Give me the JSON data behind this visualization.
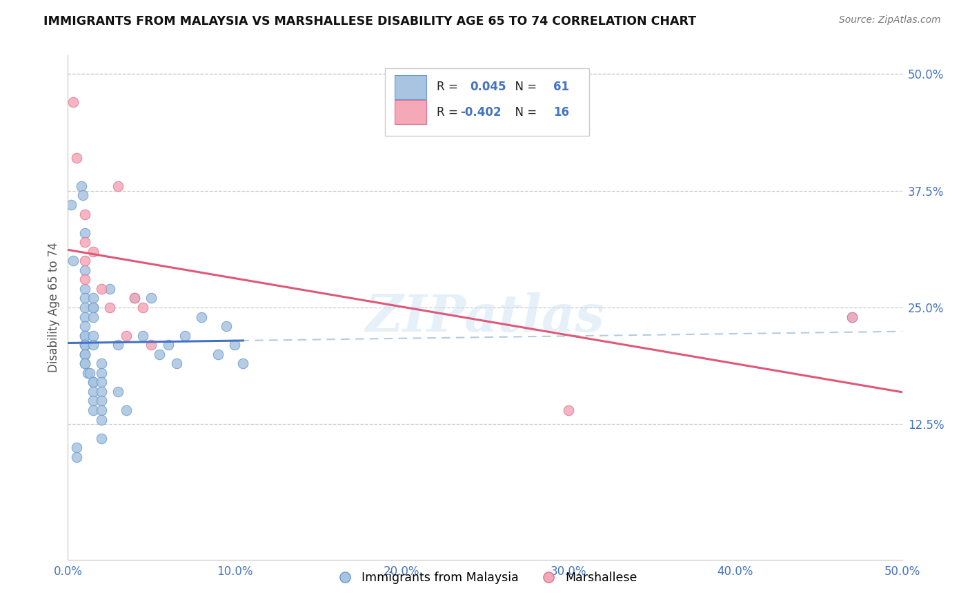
{
  "title": "IMMIGRANTS FROM MALAYSIA VS MARSHALLESE DISABILITY AGE 65 TO 74 CORRELATION CHART",
  "source": "Source: ZipAtlas.com",
  "ylabel": "Disability Age 65 to 74",
  "xticklabels": [
    "0.0%",
    "10.0%",
    "20.0%",
    "30.0%",
    "40.0%",
    "50.0%"
  ],
  "yticklabels": [
    "12.5%",
    "25.0%",
    "37.5%",
    "50.0%"
  ],
  "xticks": [
    0.0,
    10.0,
    20.0,
    30.0,
    40.0,
    50.0
  ],
  "yticks": [
    12.5,
    25.0,
    37.5,
    50.0
  ],
  "xlim": [
    0.0,
    50.0
  ],
  "ylim": [
    -2.0,
    52.0
  ],
  "legend_labels": [
    "Immigrants from Malaysia",
    "Marshallese"
  ],
  "blue_R": "0.045",
  "blue_N": "61",
  "pink_R": "-0.402",
  "pink_N": "16",
  "blue_color": "#a8c4e0",
  "pink_color": "#f4a8b8",
  "blue_edge_color": "#6699cc",
  "pink_edge_color": "#e07090",
  "blue_line_color": "#4472c4",
  "pink_line_color": "#e05878",
  "blue_dash_color": "#b0cce0",
  "watermark": "ZIPatlas",
  "blue_x": [
    0.2,
    0.3,
    0.5,
    0.5,
    0.8,
    0.9,
    1.0,
    1.0,
    1.0,
    1.0,
    1.0,
    1.0,
    1.0,
    1.0,
    1.0,
    1.0,
    1.0,
    1.0,
    1.0,
    1.0,
    1.0,
    1.0,
    1.0,
    1.2,
    1.3,
    1.5,
    1.5,
    1.5,
    1.5,
    1.5,
    1.5,
    1.5,
    1.5,
    1.5,
    1.5,
    1.5,
    2.0,
    2.0,
    2.0,
    2.0,
    2.0,
    2.0,
    2.0,
    2.0,
    2.5,
    3.0,
    3.0,
    3.5,
    4.0,
    4.5,
    5.0,
    5.5,
    6.0,
    6.5,
    7.0,
    8.0,
    9.0,
    9.5,
    10.0,
    10.5,
    47.0
  ],
  "blue_y": [
    36.0,
    30.0,
    10.0,
    9.0,
    38.0,
    37.0,
    33.0,
    29.0,
    27.0,
    26.0,
    25.0,
    24.0,
    23.0,
    22.0,
    22.0,
    21.0,
    21.0,
    21.0,
    20.0,
    20.0,
    20.0,
    19.0,
    19.0,
    18.0,
    18.0,
    17.0,
    17.0,
    16.0,
    15.0,
    14.0,
    26.0,
    25.0,
    25.0,
    24.0,
    22.0,
    21.0,
    19.0,
    18.0,
    17.0,
    16.0,
    15.0,
    14.0,
    13.0,
    11.0,
    27.0,
    21.0,
    16.0,
    14.0,
    26.0,
    22.0,
    26.0,
    20.0,
    21.0,
    19.0,
    22.0,
    24.0,
    20.0,
    23.0,
    21.0,
    19.0,
    24.0
  ],
  "pink_x": [
    0.3,
    0.5,
    1.0,
    1.0,
    1.0,
    1.0,
    1.5,
    2.0,
    2.5,
    3.0,
    3.5,
    4.0,
    4.5,
    5.0,
    30.0,
    47.0
  ],
  "pink_y": [
    47.0,
    41.0,
    35.0,
    32.0,
    30.0,
    28.0,
    31.0,
    27.0,
    25.0,
    38.0,
    22.0,
    26.0,
    25.0,
    21.0,
    14.0,
    24.0
  ]
}
